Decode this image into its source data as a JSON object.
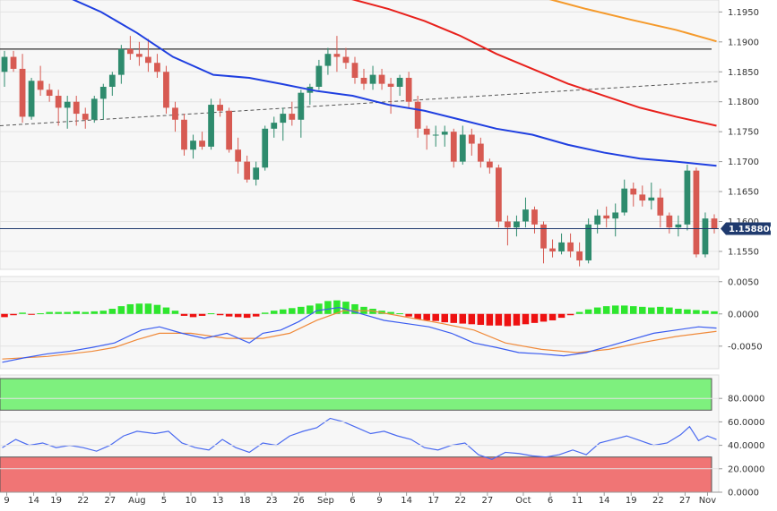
{
  "chart_data": [
    {
      "type": "candlestick",
      "panel": "price",
      "title": "",
      "colors": {
        "up": "#2e8b6d",
        "down": "#d75a52",
        "sma_fast": "#1f3fe0",
        "sma_mid": "#e8211c",
        "sma_slow": "#f59a2b",
        "hline": "#000000",
        "trend": "#555555",
        "price_line": "#1f3a6e"
      },
      "ylim": [
        1.152,
        1.197
      ],
      "y_ticks": [
        "1.1550",
        "1.1600",
        "1.1650",
        "1.1700",
        "1.1750",
        "1.1800",
        "1.1850",
        "1.1900",
        "1.1950"
      ],
      "y_tick_values": [
        1.155,
        1.16,
        1.165,
        1.17,
        1.175,
        1.18,
        1.185,
        1.19,
        1.195
      ],
      "last_price": 1.1588,
      "last_price_label": "1.158800",
      "horizontal_level": 1.1888,
      "trendline": [
        [
          0,
          1.176
        ],
        [
          79,
          1.1834
        ]
      ],
      "candles": [
        [
          1.185,
          1.1885,
          1.1825,
          1.1875
        ],
        [
          1.1875,
          1.1885,
          1.185,
          1.1855
        ],
        [
          1.1855,
          1.188,
          1.1765,
          1.1775
        ],
        [
          1.1775,
          1.184,
          1.177,
          1.1835
        ],
        [
          1.1835,
          1.186,
          1.181,
          1.182
        ],
        [
          1.182,
          1.183,
          1.18,
          1.181
        ],
        [
          1.181,
          1.182,
          1.176,
          1.179
        ],
        [
          1.179,
          1.181,
          1.1755,
          1.18
        ],
        [
          1.18,
          1.181,
          1.176,
          1.178
        ],
        [
          1.178,
          1.179,
          1.1755,
          1.177
        ],
        [
          1.177,
          1.181,
          1.1765,
          1.1805
        ],
        [
          1.1805,
          1.183,
          1.177,
          1.1825
        ],
        [
          1.1825,
          1.185,
          1.181,
          1.1845
        ],
        [
          1.1845,
          1.1895,
          1.183,
          1.1888
        ],
        [
          1.1888,
          1.191,
          1.187,
          1.188
        ],
        [
          1.188,
          1.19,
          1.186,
          1.1875
        ],
        [
          1.1875,
          1.1905,
          1.185,
          1.1865
        ],
        [
          1.1865,
          1.188,
          1.184,
          1.185
        ],
        [
          1.185,
          1.186,
          1.178,
          1.179
        ],
        [
          1.179,
          1.18,
          1.175,
          1.177
        ],
        [
          1.177,
          1.178,
          1.171,
          1.172
        ],
        [
          1.172,
          1.1745,
          1.1705,
          1.1735
        ],
        [
          1.1735,
          1.175,
          1.172,
          1.1725
        ],
        [
          1.1725,
          1.1805,
          1.172,
          1.1795
        ],
        [
          1.1795,
          1.1805,
          1.1775,
          1.1785
        ],
        [
          1.1785,
          1.179,
          1.1715,
          1.172
        ],
        [
          1.172,
          1.174,
          1.168,
          1.17
        ],
        [
          1.17,
          1.171,
          1.1665,
          1.167
        ],
        [
          1.167,
          1.17,
          1.166,
          1.169
        ],
        [
          1.169,
          1.176,
          1.1685,
          1.1755
        ],
        [
          1.1755,
          1.1775,
          1.174,
          1.1765
        ],
        [
          1.1765,
          1.179,
          1.1735,
          1.178
        ],
        [
          1.178,
          1.18,
          1.176,
          1.177
        ],
        [
          1.177,
          1.182,
          1.174,
          1.1815
        ],
        [
          1.1815,
          1.183,
          1.1795,
          1.1825
        ],
        [
          1.1825,
          1.187,
          1.182,
          1.186
        ],
        [
          1.186,
          1.189,
          1.1845,
          1.188
        ],
        [
          1.188,
          1.191,
          1.185,
          1.1875
        ],
        [
          1.1875,
          1.189,
          1.1855,
          1.1865
        ],
        [
          1.1865,
          1.1875,
          1.183,
          1.184
        ],
        [
          1.184,
          1.1855,
          1.182,
          1.183
        ],
        [
          1.183,
          1.186,
          1.182,
          1.1845
        ],
        [
          1.1845,
          1.1855,
          1.182,
          1.183
        ],
        [
          1.183,
          1.184,
          1.178,
          1.1825
        ],
        [
          1.1825,
          1.1845,
          1.181,
          1.184
        ],
        [
          1.184,
          1.185,
          1.179,
          1.18
        ],
        [
          1.18,
          1.181,
          1.174,
          1.1755
        ],
        [
          1.1755,
          1.176,
          1.172,
          1.1745
        ],
        [
          1.1745,
          1.176,
          1.1725,
          1.1745
        ],
        [
          1.1745,
          1.176,
          1.1725,
          1.175
        ],
        [
          1.175,
          1.1755,
          1.169,
          1.17
        ],
        [
          1.17,
          1.176,
          1.1695,
          1.1745
        ],
        [
          1.1745,
          1.1755,
          1.171,
          1.173
        ],
        [
          1.173,
          1.174,
          1.169,
          1.17
        ],
        [
          1.17,
          1.1705,
          1.168,
          1.169
        ],
        [
          1.169,
          1.1695,
          1.159,
          1.16
        ],
        [
          1.16,
          1.161,
          1.156,
          1.159
        ],
        [
          1.159,
          1.161,
          1.1575,
          1.16
        ],
        [
          1.16,
          1.164,
          1.159,
          1.162
        ],
        [
          1.162,
          1.1625,
          1.158,
          1.1595
        ],
        [
          1.1595,
          1.16,
          1.153,
          1.1555
        ],
        [
          1.1555,
          1.157,
          1.154,
          1.155
        ],
        [
          1.155,
          1.158,
          1.1545,
          1.1565
        ],
        [
          1.1565,
          1.158,
          1.154,
          1.155
        ],
        [
          1.155,
          1.1565,
          1.1525,
          1.1535
        ],
        [
          1.1535,
          1.1605,
          1.153,
          1.1595
        ],
        [
          1.1595,
          1.162,
          1.158,
          1.161
        ],
        [
          1.161,
          1.1625,
          1.159,
          1.1605
        ],
        [
          1.1605,
          1.163,
          1.1575,
          1.1615
        ],
        [
          1.1615,
          1.167,
          1.161,
          1.1655
        ],
        [
          1.1655,
          1.1665,
          1.1625,
          1.1645
        ],
        [
          1.1645,
          1.166,
          1.1625,
          1.1635
        ],
        [
          1.1635,
          1.1665,
          1.162,
          1.164
        ],
        [
          1.164,
          1.1655,
          1.159,
          1.161
        ],
        [
          1.161,
          1.1615,
          1.158,
          1.159
        ],
        [
          1.159,
          1.161,
          1.1575,
          1.1595
        ],
        [
          1.1595,
          1.1695,
          1.1585,
          1.1685
        ],
        [
          1.1685,
          1.169,
          1.154,
          1.1545
        ],
        [
          1.1545,
          1.1615,
          1.154,
          1.1605
        ],
        [
          1.1605,
          1.1612,
          1.158,
          1.1588
        ]
      ],
      "sma_fast": [
        [
          0,
          1.1995
        ],
        [
          10,
          1.199
        ],
        [
          22,
          1.195
        ],
        [
          30,
          1.1915
        ],
        [
          38,
          1.1875
        ],
        [
          47,
          1.1845
        ],
        [
          55,
          1.184
        ],
        [
          62,
          1.183
        ],
        [
          70,
          1.1818
        ],
        [
          78,
          1.181
        ],
        [
          86,
          1.1795
        ],
        [
          94,
          1.1785
        ],
        [
          102,
          1.177
        ],
        [
          110,
          1.1755
        ],
        [
          118,
          1.1745
        ],
        [
          126,
          1.1728
        ],
        [
          134,
          1.1715
        ],
        [
          142,
          1.1705
        ],
        [
          150,
          1.17
        ],
        [
          159,
          1.1693
        ]
      ],
      "sma_mid": [
        [
          0,
          1.205
        ],
        [
          60,
          1.1985
        ],
        [
          76,
          1.1975
        ],
        [
          86,
          1.1955
        ],
        [
          94,
          1.1935
        ],
        [
          102,
          1.191
        ],
        [
          110,
          1.188
        ],
        [
          118,
          1.1855
        ],
        [
          126,
          1.183
        ],
        [
          134,
          1.181
        ],
        [
          142,
          1.179
        ],
        [
          150,
          1.1775
        ],
        [
          159,
          1.176
        ]
      ],
      "sma_slow": [
        [
          120,
          1.1975
        ],
        [
          130,
          1.1955
        ],
        [
          140,
          1.1937
        ],
        [
          150,
          1.192
        ],
        [
          159,
          1.1901
        ]
      ]
    },
    {
      "type": "histogram+lines",
      "panel": "macd",
      "ylim": [
        -0.0085,
        0.0058
      ],
      "y_ticks": [
        "0.0050",
        "0.0000",
        "-0.0050"
      ],
      "y_tick_values": [
        0.005,
        0.0,
        -0.005
      ],
      "colors": {
        "pos": "#2ee62e",
        "neg": "#ee1111",
        "line1": "#3a5cf0",
        "line2": "#f08a3a"
      },
      "histogram": [
        -0.0005,
        -0.0002,
        0.0002,
        -0.0001,
        0.0001,
        0.0003,
        0.0003,
        0.0003,
        0.0004,
        0.0003,
        0.0004,
        0.0005,
        0.0008,
        0.0012,
        0.0015,
        0.0016,
        0.0016,
        0.0014,
        0.001,
        0.0005,
        -0.0003,
        -0.0005,
        -0.0003,
        0.0001,
        -0.0002,
        -0.0004,
        -0.0005,
        -0.0006,
        -0.0004,
        0.0002,
        0.0005,
        0.0007,
        0.0009,
        0.0011,
        0.0013,
        0.0016,
        0.002,
        0.0021,
        0.0019,
        0.0015,
        0.0011,
        0.0008,
        0.0005,
        0.0003,
        0.0001,
        -0.0004,
        -0.0008,
        -0.001,
        -0.0011,
        -0.0013,
        -0.0014,
        -0.0015,
        -0.0016,
        -0.0017,
        -0.0018,
        -0.0018,
        -0.0019,
        -0.0018,
        -0.0016,
        -0.0014,
        -0.0012,
        -0.001,
        -0.0006,
        -0.0002,
        0.0003,
        0.0007,
        0.001,
        0.0012,
        0.0013,
        0.0013,
        0.0012,
        0.0011,
        0.001,
        0.0011,
        0.001,
        0.0008,
        0.0007,
        0.0006,
        0.0005,
        0.0004
      ],
      "line1": [
        [
          0,
          -0.0075
        ],
        [
          5,
          -0.0068
        ],
        [
          10,
          -0.0062
        ],
        [
          15,
          -0.0058
        ],
        [
          20,
          -0.0052
        ],
        [
          25,
          -0.0045
        ],
        [
          28,
          -0.0035
        ],
        [
          31,
          -0.0025
        ],
        [
          35,
          -0.002
        ],
        [
          40,
          -0.003
        ],
        [
          45,
          -0.0038
        ],
        [
          50,
          -0.003
        ],
        [
          55,
          -0.0045
        ],
        [
          58,
          -0.003
        ],
        [
          62,
          -0.0025
        ],
        [
          66,
          -0.0012
        ],
        [
          70,
          0.0005
        ],
        [
          75,
          0.001
        ],
        [
          80,
          0.0
        ],
        [
          85,
          -0.001
        ],
        [
          90,
          -0.0015
        ],
        [
          95,
          -0.002
        ],
        [
          100,
          -0.003
        ],
        [
          105,
          -0.0045
        ],
        [
          110,
          -0.0052
        ],
        [
          115,
          -0.006
        ],
        [
          120,
          -0.0062
        ],
        [
          125,
          -0.0065
        ],
        [
          130,
          -0.006
        ],
        [
          135,
          -0.005
        ],
        [
          140,
          -0.004
        ],
        [
          145,
          -0.003
        ],
        [
          150,
          -0.0025
        ],
        [
          155,
          -0.002
        ],
        [
          159,
          -0.0022
        ]
      ],
      "line2": [
        [
          0,
          -0.007
        ],
        [
          10,
          -0.0066
        ],
        [
          20,
          -0.0058
        ],
        [
          25,
          -0.0052
        ],
        [
          30,
          -0.004
        ],
        [
          35,
          -0.003
        ],
        [
          42,
          -0.003
        ],
        [
          50,
          -0.0038
        ],
        [
          58,
          -0.0038
        ],
        [
          64,
          -0.003
        ],
        [
          70,
          -0.001
        ],
        [
          76,
          0.0005
        ],
        [
          82,
          0.0005
        ],
        [
          90,
          -0.0005
        ],
        [
          98,
          -0.0015
        ],
        [
          105,
          -0.0025
        ],
        [
          112,
          -0.0045
        ],
        [
          120,
          -0.0055
        ],
        [
          128,
          -0.006
        ],
        [
          135,
          -0.0055
        ],
        [
          142,
          -0.0045
        ],
        [
          150,
          -0.0035
        ],
        [
          159,
          -0.0027
        ]
      ]
    },
    {
      "type": "line",
      "panel": "rsi",
      "ylim": [
        0,
        100
      ],
      "y_ticks": [
        "80.0000",
        "60.0000",
        "40.0000",
        "20.0000",
        "0.0000"
      ],
      "y_tick_values": [
        80,
        60,
        40,
        20,
        0
      ],
      "overbought_zone": [
        70,
        100
      ],
      "oversold_zone": [
        0,
        30
      ],
      "colors": {
        "line": "#4a6af0",
        "overbought": "#7ef07e",
        "oversold": "#f07575"
      },
      "values": [
        [
          0,
          38
        ],
        [
          3,
          45
        ],
        [
          6,
          40
        ],
        [
          9,
          42
        ],
        [
          12,
          38
        ],
        [
          15,
          40
        ],
        [
          18,
          38
        ],
        [
          21,
          35
        ],
        [
          24,
          40
        ],
        [
          27,
          48
        ],
        [
          30,
          52
        ],
        [
          34,
          50
        ],
        [
          37,
          52
        ],
        [
          40,
          42
        ],
        [
          43,
          38
        ],
        [
          46,
          36
        ],
        [
          49,
          45
        ],
        [
          52,
          38
        ],
        [
          55,
          34
        ],
        [
          58,
          42
        ],
        [
          61,
          40
        ],
        [
          64,
          48
        ],
        [
          67,
          52
        ],
        [
          70,
          55
        ],
        [
          73,
          63
        ],
        [
          76,
          60
        ],
        [
          79,
          55
        ],
        [
          82,
          50
        ],
        [
          85,
          52
        ],
        [
          88,
          48
        ],
        [
          91,
          45
        ],
        [
          94,
          38
        ],
        [
          97,
          36
        ],
        [
          100,
          40
        ],
        [
          103,
          42
        ],
        [
          106,
          32
        ],
        [
          109,
          28
        ],
        [
          112,
          34
        ],
        [
          115,
          33
        ],
        [
          118,
          31
        ],
        [
          121,
          30
        ],
        [
          124,
          32
        ],
        [
          127,
          36
        ],
        [
          130,
          32
        ],
        [
          133,
          42
        ],
        [
          136,
          45
        ],
        [
          139,
          48
        ],
        [
          142,
          44
        ],
        [
          145,
          40
        ],
        [
          148,
          42
        ],
        [
          151,
          49
        ],
        [
          153,
          56
        ],
        [
          155,
          44
        ],
        [
          157,
          48
        ],
        [
          159,
          45
        ]
      ]
    }
  ],
  "x_axis": {
    "labels": [
      "9",
      "14",
      "19",
      "22",
      "27",
      "Aug",
      "5",
      "10",
      "13",
      "18",
      "23",
      "26",
      "Sep",
      "6",
      "9",
      "14",
      "17",
      "22",
      "27",
      "Oct",
      "6",
      "11",
      "14",
      "19",
      "22",
      "27",
      "Nov"
    ],
    "positions": [
      1,
      7,
      12,
      18,
      24,
      30,
      36,
      42,
      48,
      54,
      60,
      66,
      72,
      78,
      84,
      90,
      96,
      102,
      108,
      116,
      122,
      128,
      134,
      140,
      146,
      152,
      157
    ]
  }
}
